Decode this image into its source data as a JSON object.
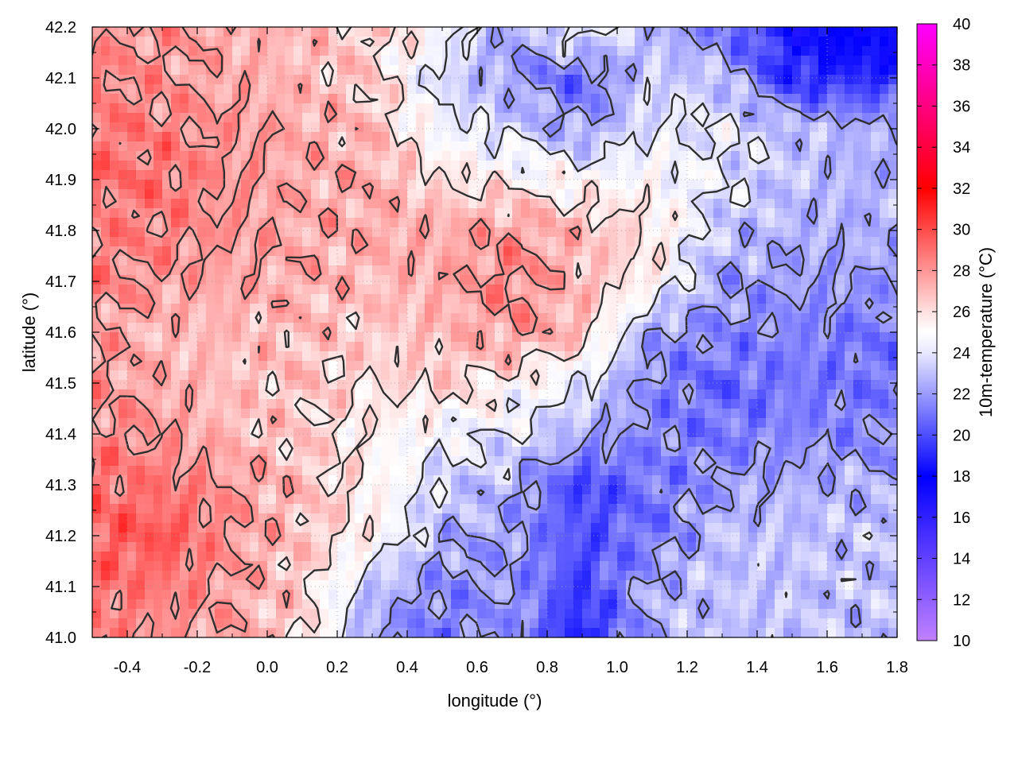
{
  "chart_data": {
    "type": "heatmap",
    "title": "",
    "xlabel": "longitude (°)",
    "ylabel": "latitude (°)",
    "colorbar_label": "10m-temperature (°C)",
    "xlim": [
      -0.5,
      1.8
    ],
    "ylim": [
      41.0,
      42.2
    ],
    "zlim": [
      10,
      40
    ],
    "x_ticks": [
      "-0.4",
      "-0.2",
      "0.0",
      "0.2",
      "0.4",
      "0.6",
      "0.8",
      "1.0",
      "1.2",
      "1.4",
      "1.6",
      "1.8"
    ],
    "x_tick_values": [
      -0.4,
      -0.2,
      0.0,
      0.2,
      0.4,
      0.6,
      0.8,
      1.0,
      1.2,
      1.4,
      1.6,
      1.8
    ],
    "y_ticks": [
      "41.0",
      "41.1",
      "41.2",
      "41.3",
      "41.4",
      "41.5",
      "41.6",
      "41.7",
      "41.8",
      "41.9",
      "42.0",
      "42.1",
      "42.2"
    ],
    "y_tick_values": [
      41.0,
      41.1,
      41.2,
      41.3,
      41.4,
      41.5,
      41.6,
      41.7,
      41.8,
      41.9,
      42.0,
      42.1,
      42.2
    ],
    "colorbar_ticks": [
      "10",
      "12",
      "14",
      "16",
      "18",
      "20",
      "22",
      "24",
      "26",
      "28",
      "30",
      "32",
      "34",
      "36",
      "38",
      "40"
    ],
    "colorbar_tick_values": [
      10,
      12,
      14,
      16,
      18,
      20,
      22,
      24,
      26,
      28,
      30,
      32,
      34,
      36,
      38,
      40
    ],
    "colormap": [
      {
        "value": 10,
        "color": "#c080ff"
      },
      {
        "value": 18,
        "color": "#0000ff"
      },
      {
        "value": 24,
        "color": "#e8e8ff"
      },
      {
        "value": 25,
        "color": "#ffffff"
      },
      {
        "value": 26,
        "color": "#ffe0e0"
      },
      {
        "value": 32,
        "color": "#ff0000"
      },
      {
        "value": 40,
        "color": "#ff00ff"
      }
    ],
    "grid": true,
    "temperature_field": {
      "lon": [
        -0.5,
        -0.3,
        -0.1,
        0.1,
        0.3,
        0.5,
        0.7,
        0.9,
        1.1,
        1.3,
        1.5,
        1.7,
        1.8
      ],
      "lat": [
        41.0,
        41.1,
        41.2,
        41.3,
        41.4,
        41.5,
        41.6,
        41.7,
        41.8,
        41.9,
        42.0,
        42.1,
        42.2
      ],
      "values": [
        [
          28.5,
          28.0,
          27.5,
          26.5,
          22.0,
          21.0,
          22.0,
          18.5,
          22.5,
          23.0,
          23.0,
          23.0,
          23.0
        ],
        [
          29.0,
          28.8,
          27.8,
          26.5,
          23.0,
          21.5,
          22.0,
          19.5,
          22.5,
          23.0,
          23.0,
          23.0,
          23.0
        ],
        [
          29.5,
          29.8,
          28.0,
          26.8,
          25.5,
          22.5,
          22.0,
          20.0,
          21.0,
          23.0,
          23.0,
          23.0,
          23.0
        ],
        [
          29.0,
          28.8,
          28.0,
          27.0,
          25.5,
          23.5,
          22.5,
          19.5,
          21.0,
          22.0,
          22.5,
          22.5,
          22.5
        ],
        [
          28.5,
          28.0,
          27.0,
          26.5,
          25.5,
          24.5,
          24.0,
          22.5,
          21.5,
          21.0,
          21.5,
          21.5,
          21.5
        ],
        [
          28.0,
          27.5,
          26.8,
          26.8,
          26.0,
          26.5,
          25.5,
          24.0,
          21.5,
          20.5,
          21.0,
          21.0,
          21.0
        ],
        [
          28.0,
          27.0,
          27.0,
          27.0,
          26.5,
          27.0,
          28.0,
          27.0,
          22.0,
          21.5,
          21.5,
          21.0,
          21.0
        ],
        [
          28.5,
          28.0,
          27.5,
          27.5,
          27.0,
          27.5,
          28.5,
          27.0,
          25.5,
          22.0,
          22.0,
          22.0,
          22.0
        ],
        [
          28.5,
          28.5,
          28.0,
          27.5,
          27.5,
          27.5,
          28.0,
          27.0,
          26.0,
          23.0,
          22.5,
          22.5,
          22.5
        ],
        [
          29.0,
          29.0,
          28.0,
          27.5,
          27.5,
          26.0,
          25.5,
          25.0,
          25.0,
          24.0,
          23.0,
          22.5,
          22.5
        ],
        [
          29.0,
          28.5,
          28.0,
          27.5,
          27.0,
          24.5,
          23.5,
          22.0,
          24.0,
          24.0,
          23.0,
          22.5,
          22.5
        ],
        [
          28.5,
          28.0,
          27.5,
          27.0,
          26.5,
          23.5,
          22.0,
          20.5,
          23.5,
          23.0,
          19.0,
          19.0,
          19.0
        ],
        [
          28.0,
          28.0,
          27.5,
          27.0,
          26.5,
          25.0,
          22.0,
          25.0,
          22.5,
          21.0,
          18.0,
          17.5,
          17.5
        ]
      ]
    },
    "contour_levels": [
      22,
      24,
      26,
      28
    ]
  }
}
